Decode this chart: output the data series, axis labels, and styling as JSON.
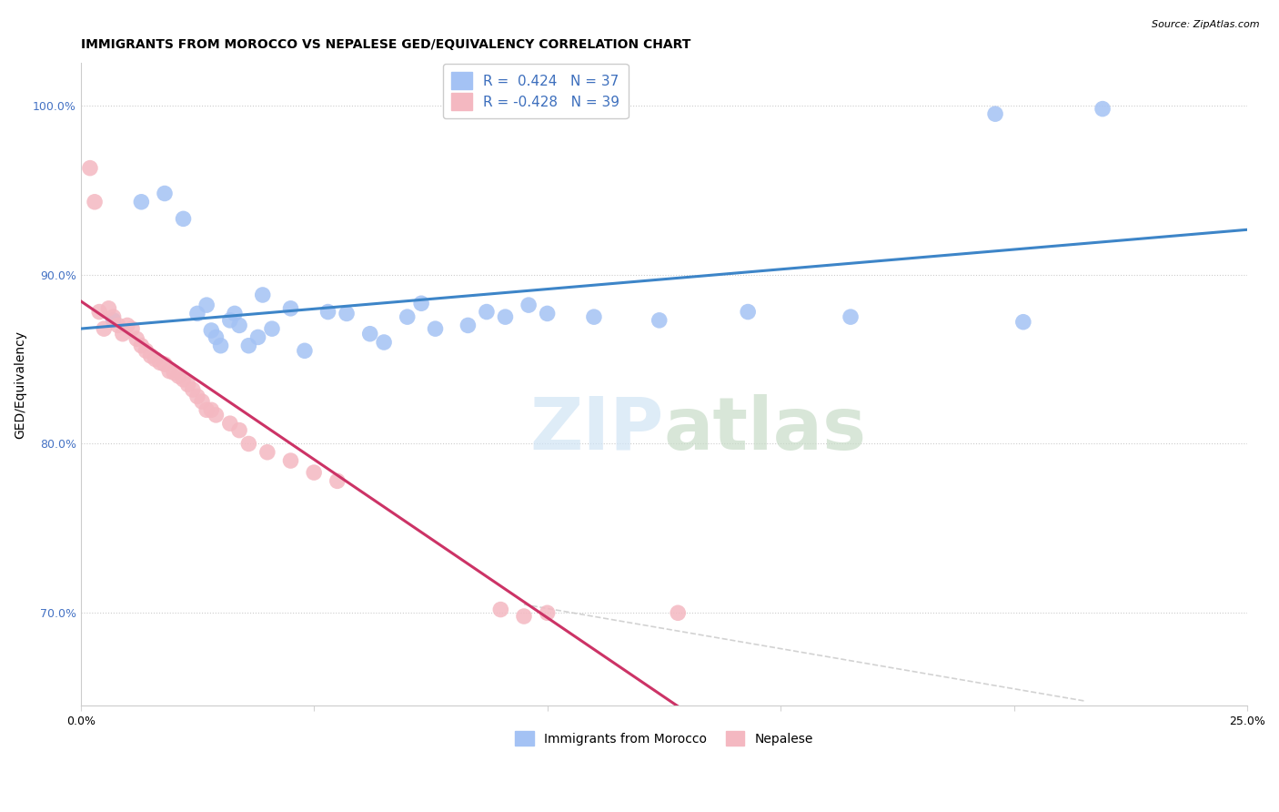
{
  "title": "IMMIGRANTS FROM MOROCCO VS NEPALESE GED/EQUIVALENCY CORRELATION CHART",
  "source": "Source: ZipAtlas.com",
  "ylabel": "GED/Equivalency",
  "xlim": [
    0.0,
    0.25
  ],
  "ylim": [
    0.645,
    1.025
  ],
  "yticks": [
    0.7,
    0.8,
    0.9,
    1.0
  ],
  "ytick_labels": [
    "70.0%",
    "80.0%",
    "90.0%",
    "100.0%"
  ],
  "xticks": [
    0.0,
    0.05,
    0.1,
    0.15,
    0.2,
    0.25
  ],
  "xtick_labels": [
    "0.0%",
    "",
    "",
    "",
    "",
    "25.0%"
  ],
  "legend_r1": "R =  0.424   N = 37",
  "legend_r2": "R = -0.428   N = 39",
  "blue_color": "#a4c2f4",
  "pink_color": "#f4b8c1",
  "blue_line_color": "#3d85c8",
  "pink_line_color": "#cc3366",
  "blue_scatter_x": [
    0.007,
    0.013,
    0.018,
    0.022,
    0.025,
    0.027,
    0.028,
    0.029,
    0.03,
    0.032,
    0.033,
    0.034,
    0.036,
    0.038,
    0.039,
    0.041,
    0.045,
    0.048,
    0.053,
    0.057,
    0.062,
    0.065,
    0.07,
    0.073,
    0.076,
    0.083,
    0.087,
    0.091,
    0.096,
    0.1,
    0.11,
    0.124,
    0.143,
    0.165,
    0.202,
    0.219,
    0.196
  ],
  "blue_scatter_y": [
    0.873,
    0.943,
    0.948,
    0.933,
    0.877,
    0.882,
    0.867,
    0.863,
    0.858,
    0.873,
    0.877,
    0.87,
    0.858,
    0.863,
    0.888,
    0.868,
    0.88,
    0.855,
    0.878,
    0.877,
    0.865,
    0.86,
    0.875,
    0.883,
    0.868,
    0.87,
    0.878,
    0.875,
    0.882,
    0.877,
    0.875,
    0.873,
    0.878,
    0.875,
    0.872,
    0.998,
    0.995
  ],
  "pink_scatter_x": [
    0.002,
    0.003,
    0.004,
    0.005,
    0.006,
    0.007,
    0.008,
    0.009,
    0.01,
    0.011,
    0.012,
    0.013,
    0.014,
    0.015,
    0.016,
    0.017,
    0.018,
    0.019,
    0.02,
    0.021,
    0.022,
    0.023,
    0.024,
    0.025,
    0.026,
    0.027,
    0.028,
    0.029,
    0.032,
    0.034,
    0.036,
    0.04,
    0.045,
    0.05,
    0.055,
    0.09,
    0.095,
    0.1,
    0.128
  ],
  "pink_scatter_y": [
    0.963,
    0.943,
    0.878,
    0.868,
    0.88,
    0.875,
    0.87,
    0.865,
    0.87,
    0.868,
    0.862,
    0.858,
    0.855,
    0.852,
    0.85,
    0.848,
    0.847,
    0.843,
    0.842,
    0.84,
    0.838,
    0.835,
    0.832,
    0.828,
    0.825,
    0.82,
    0.82,
    0.817,
    0.812,
    0.808,
    0.8,
    0.795,
    0.79,
    0.783,
    0.778,
    0.702,
    0.698,
    0.7,
    0.7
  ],
  "title_fontsize": 10,
  "axis_label_fontsize": 10,
  "tick_fontsize": 9,
  "legend_fontsize": 11,
  "watermark_zip_color": "#d0e4f5",
  "watermark_atlas_color": "#c8dcc8",
  "blue_line_x0": 0.0,
  "blue_line_x1": 0.25,
  "pink_line_x0": 0.0,
  "pink_line_x1": 0.135,
  "dash_line_x0": 0.095,
  "dash_line_x1": 0.215,
  "dash_line_y0": 0.705,
  "dash_line_y1": 0.648
}
